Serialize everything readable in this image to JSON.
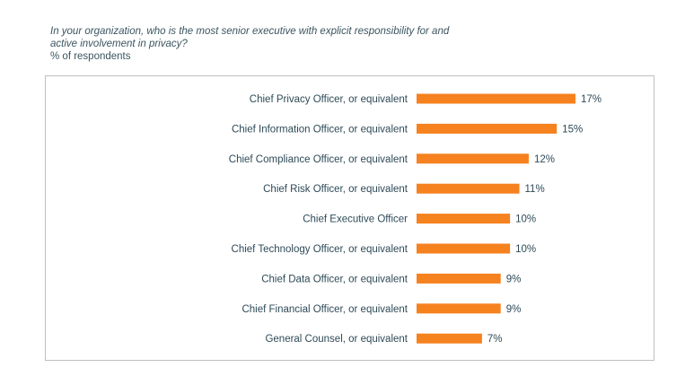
{
  "header": {
    "question": "In your organization, who is the most senior executive with explicit responsibility for and active involvement in privacy?",
    "subtitle": "% of respondents"
  },
  "colors": {
    "bar": "#F5811F",
    "text": "#2e4a57",
    "frame": "#bfbfbf"
  },
  "chart_data": {
    "type": "bar",
    "orientation": "horizontal",
    "title": "In your organization, who is the most senior executive with explicit responsibility for and active involvement in privacy?",
    "ylabel": "% of respondents",
    "categories": [
      "Chief Privacy Officer, or equivalent",
      "Chief Information Officer, or equivalent",
      "Chief Compliance Officer, or equivalent",
      "Chief Risk Officer, or equivalent",
      "Chief Executive Officer",
      "Chief Technology Officer, or equivalent",
      "Chief Data Officer, or equivalent",
      "Chief Financial Officer, or equivalent",
      "General Counsel, or equivalent"
    ],
    "values": [
      17,
      15,
      12,
      11,
      10,
      10,
      9,
      9,
      7
    ],
    "value_labels": [
      "17%",
      "15%",
      "12%",
      "11%",
      "10%",
      "10%",
      "9%",
      "9%",
      "7%"
    ],
    "xlim": [
      0,
      17
    ],
    "grid": false,
    "legend": "none"
  }
}
